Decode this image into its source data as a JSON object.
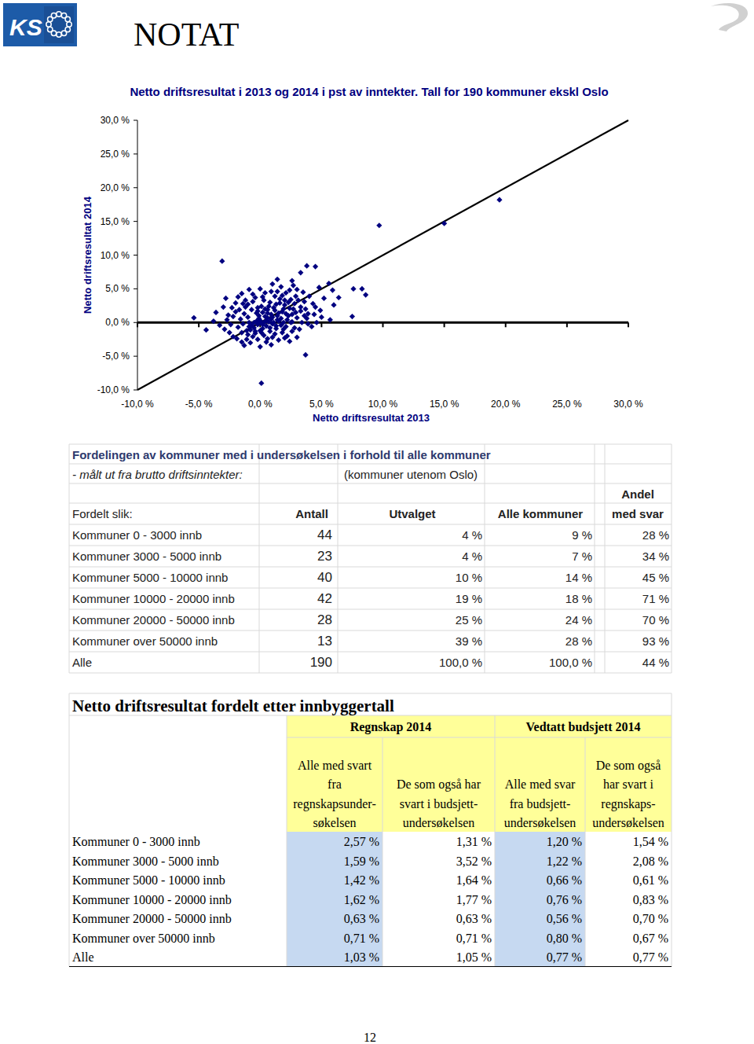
{
  "header": {
    "logo_text": "KS",
    "title": "NOTAT"
  },
  "chart_data": {
    "type": "scatter",
    "title": "Netto driftsresultat i 2013 og 2014 i pst av inntekter. Tall for 190 kommuner ekskl Oslo",
    "xlabel": "Netto driftsresultat 2013",
    "ylabel": "Netto driftsresultat 2014",
    "xlim": [
      -10,
      30
    ],
    "ylim": [
      -10,
      30
    ],
    "xticks": [
      {
        "value": -10,
        "label": "-10,0 %"
      },
      {
        "value": -5,
        "label": "-5,0 %"
      },
      {
        "value": 0,
        "label": "0,0 %"
      },
      {
        "value": 5,
        "label": "5,0 %"
      },
      {
        "value": 10,
        "label": "10,0 %"
      },
      {
        "value": 15,
        "label": "15,0 %"
      },
      {
        "value": 20,
        "label": "20,0 %"
      },
      {
        "value": 25,
        "label": "25,0 %"
      },
      {
        "value": 30,
        "label": "30,0 %"
      }
    ],
    "yticks": [
      {
        "value": -10,
        "label": "-10,0 %"
      },
      {
        "value": -5,
        "label": "-5,0 %"
      },
      {
        "value": 0,
        "label": "0,0 %"
      },
      {
        "value": 5,
        "label": "5,0 %"
      },
      {
        "value": 10,
        "label": "10,0 %"
      },
      {
        "value": 15,
        "label": "15,0 %"
      },
      {
        "value": 20,
        "label": "20,0 %"
      },
      {
        "value": 25,
        "label": "25,0 %"
      },
      {
        "value": 30,
        "label": "30,0 %"
      }
    ],
    "grid": false,
    "series": [
      {
        "type": "scatter",
        "color": "#000080",
        "marker": "diamond",
        "x": [
          19.5,
          15.0,
          9.7,
          -3.1,
          3.8,
          4.5,
          0.1,
          3.7,
          7.6,
          8.3,
          8.6,
          7.5,
          -5.4,
          -4.4,
          1.4,
          2.6,
          3.3,
          5.6,
          5.9,
          4.8,
          -3.8,
          -3.3,
          -3.6,
          -2.8,
          -2.0,
          -1.5,
          6.0,
          5.2,
          4.9,
          6.4,
          5.7,
          4.2,
          -1.9,
          -1.5,
          -0.8,
          0.5,
          -0.2,
          1.0,
          -2.5,
          -1.0,
          1.8,
          0.0,
          -0.5,
          2.2,
          3.2,
          2.8,
          -2.2,
          -1.2,
          -0.6,
          0.2,
          0.9,
          1.7,
          2.1,
          3.0,
          2.5,
          3.6,
          4.3,
          3.9,
          2.4,
          1.3,
          0.6,
          -0.3,
          -1.6,
          -0.9,
          0.3,
          0.7,
          1.1,
          1.5,
          1.9,
          2.6,
          3.4,
          -0.1,
          0.4,
          0.9,
          1.4,
          1.8,
          2.3,
          2.9,
          3.3,
          0.1,
          -0.7,
          -1.3,
          -2.4,
          -1.8,
          -1.1,
          -0.4,
          0.3,
          0.8,
          1.3,
          1.7,
          2.1,
          2.6,
          -0.2,
          0.5,
          1.0,
          0.2,
          -0.7,
          1.6,
          0.8,
          2.0,
          2.8,
          1.2,
          0.4,
          -0.4,
          -1.0,
          -2.0,
          -2.7,
          3.8,
          4.4,
          4.0,
          3.5,
          2.7,
          1.0,
          0.0,
          -0.9,
          -1.8,
          -2.3,
          -1.4,
          -0.6,
          0.6,
          1.5,
          -1.3,
          0.0,
          2.4,
          3.0,
          -2.9,
          -2.2,
          0.9,
          1.2,
          0.2,
          -0.2,
          2.0,
          1.4,
          2.9,
          3.7,
          -0.3,
          0.5,
          1.7,
          2.2,
          3.0,
          -1.0,
          -1.7,
          0.7,
          1.9,
          2.5,
          -0.5,
          0.0,
          1.3,
          -3.0,
          4.6,
          -0.1,
          0.4,
          1.1,
          1.6,
          2.3,
          3.1,
          0.2,
          0.8,
          1.9,
          -0.8,
          -1.5,
          0.6,
          1.0,
          2.7,
          3.6,
          -2.6,
          -0.6,
          0.3,
          1.8,
          2.4,
          -1.2,
          3.9,
          5.0,
          4.5,
          -0.4,
          0.1,
          1.2,
          2.0,
          -1.1,
          0.9,
          -0.2,
          1.5,
          2.6,
          0.6,
          -1.4,
          3.3,
          0.0,
          1.4,
          -0.9,
          2.1
        ],
        "values": [
          18.2,
          14.7,
          14.4,
          9.1,
          8.4,
          8.3,
          -9.0,
          -4.8,
          5.0,
          5.0,
          4.1,
          0.9,
          0.7,
          -1.1,
          6.4,
          6.2,
          7.4,
          5.8,
          4.8,
          5.2,
          0.2,
          -0.4,
          1.5,
          3.6,
          2.9,
          4.3,
          2.6,
          3.6,
          1.8,
          3.7,
          0.4,
          -0.6,
          -2.4,
          -2.9,
          -3.0,
          -2.9,
          -2.5,
          -2.2,
          -1.5,
          -1.8,
          -1.5,
          -1.2,
          -0.8,
          -2.0,
          -1.0,
          -0.8,
          0.9,
          2.3,
          3.1,
          3.8,
          4.6,
          5.3,
          4.4,
          4.9,
          3.4,
          3.1,
          2.8,
          1.3,
          2.1,
          2.7,
          1.9,
          1.4,
          0.5,
          0.0,
          0.0,
          0.1,
          0.0,
          0.2,
          0.0,
          0.1,
          0.0,
          0.6,
          0.9,
          1.2,
          1.0,
          1.6,
          1.0,
          1.5,
          2.3,
          2.4,
          1.9,
          1.3,
          -0.3,
          -0.7,
          -1.2,
          -1.6,
          -1.9,
          -1.3,
          -0.9,
          -0.4,
          -0.6,
          -1.3,
          -0.3,
          -0.5,
          -0.2,
          -0.9,
          -0.4,
          3.5,
          3.0,
          2.6,
          2.8,
          3.9,
          4.4,
          3.7,
          2.7,
          1.6,
          0.4,
          0.6,
          1.2,
          3.9,
          4.5,
          5.5,
          5.7,
          5.0,
          4.9,
          3.8,
          2.2,
          -0.2,
          -2.1,
          -2.4,
          -2.6,
          -3.4,
          -3.6,
          -2.8,
          -2.2,
          -1.0,
          -2.1,
          0.5,
          1.8,
          1.5,
          2.2,
          3.3,
          4.6,
          3.9,
          2.0,
          0.2,
          0.3,
          0.6,
          0.4,
          0.7,
          0.8,
          1.9,
          2.4,
          2.0,
          0.0,
          0.0,
          0.3,
          -0.5,
          2.3,
          0.0,
          1.0,
          2.0,
          2.2,
          2.9,
          3.0,
          3.3,
          -0.3,
          -0.8,
          -1.0,
          -1.1,
          -1.5,
          1.4,
          0.8,
          2.0,
          1.0,
          1.1,
          4.2,
          3.3,
          4.0,
          4.8,
          3.3,
          -0.2,
          0.8,
          2.3,
          -1.3,
          -1.5,
          -1.7,
          -2.3,
          -2.5,
          -3.3,
          1.7,
          1.4,
          1.2,
          0.7,
          2.8,
          1.7,
          0.0,
          0.4,
          -0.6,
          1.3
        ]
      },
      {
        "type": "line",
        "color": "#000000",
        "line_style": "solid",
        "x": [
          -10,
          30
        ],
        "values": [
          -10,
          30
        ]
      }
    ]
  },
  "table1": {
    "title": "Fordelingen av kommuner med i undersøkelsen i forhold til alle kommuner",
    "subtitle": [
      "- målt ut fra brutto driftsinntekter:",
      "(kommuner utenom Oslo)"
    ],
    "columns": [
      [
        "Fordelt slik:"
      ],
      [
        "Antall"
      ],
      [
        "Utvalget"
      ],
      [
        "Alle kommuner"
      ],
      [
        "Andel",
        "med svar"
      ]
    ],
    "rows": [
      [
        "Kommuner 0 - 3000 innb",
        "44",
        "4 %",
        "9 %",
        "28 %"
      ],
      [
        "Kommuner 3000 - 5000 innb",
        "23",
        "4 %",
        "7 %",
        "34 %"
      ],
      [
        "Kommuner 5000 - 10000 innb",
        "40",
        "10 %",
        "14 %",
        "45 %"
      ],
      [
        "Kommuner 10000 - 20000 innb",
        "42",
        "19 %",
        "18 %",
        "71 %"
      ],
      [
        "Kommuner 20000 - 50000 innb",
        "28",
        "25 %",
        "24 %",
        "70 %"
      ],
      [
        "Kommuner over 50000 innb",
        "13",
        "39 %",
        "28 %",
        "93 %"
      ],
      [
        "Alle",
        "190",
        "100,0 %",
        "100,0 %",
        "44 %"
      ]
    ]
  },
  "table2": {
    "title": "Netto driftsresultat fordelt etter innbyggertall",
    "groups": [
      "Regnskap 2014",
      "Vedtatt budsjett 2014"
    ],
    "columns": [
      [
        "Alle med svart",
        "fra",
        "regnskapsunder-",
        "søkelsen"
      ],
      [
        "De som også har",
        "svart i budsjett-",
        "undersøkelsen"
      ],
      [
        "Alle med svar",
        "fra budsjett-",
        "undersøkelsen"
      ],
      [
        "De som også",
        "har svart i",
        "regnskaps-",
        "undersøkelsen"
      ]
    ],
    "rows": [
      [
        "Kommuner 0 - 3000 innb",
        "2,57 %",
        "1,31 %",
        "1,20 %",
        "1,54 %"
      ],
      [
        "Kommuner 3000 - 5000 innb",
        "1,59 %",
        "3,52 %",
        "1,22 %",
        "2,08 %"
      ],
      [
        "Kommuner 5000 - 10000 innb",
        "1,42 %",
        "1,64 %",
        "0,66 %",
        "0,61 %"
      ],
      [
        "Kommuner 10000 - 20000 innb",
        "1,62 %",
        "1,77 %",
        "0,76 %",
        "0,83 %"
      ],
      [
        "Kommuner 20000 - 50000 innb",
        "0,63 %",
        "0,63 %",
        "0,56 %",
        "0,70 %"
      ],
      [
        "Kommuner over 50000 innb",
        "0,71 %",
        "0,71 %",
        "0,80 %",
        "0,67 %"
      ],
      [
        "Alle",
        "1,03 %",
        "1,05 %",
        "0,77 %",
        "0,77 %"
      ]
    ]
  },
  "footer": {
    "page": "12"
  }
}
